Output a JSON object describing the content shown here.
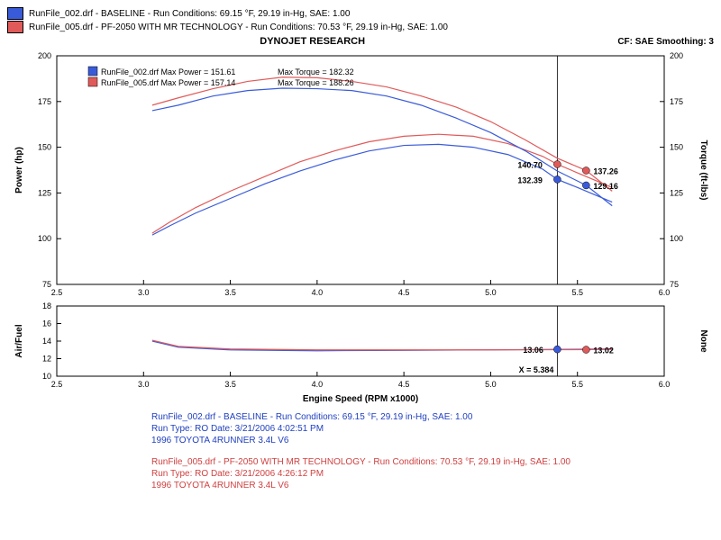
{
  "colors": {
    "run1": "#3a5bd9",
    "run2": "#e05a5a",
    "frame": "#000000",
    "bg": "#ffffff",
    "text1": "#2040c0",
    "text2": "#d04040"
  },
  "top_legend": {
    "r1": "RunFile_002.drf - BASELINE  -  Run Conditions: 69.15 °F, 29.19 in-Hg, SAE: 1.00",
    "r2": "RunFile_005.drf - PF-2050 WITH MR TECHNOLOGY  -  Run Conditions: 70.53 °F, 29.19 in-Hg, SAE: 1.00"
  },
  "title": "DYNOJET RESEARCH",
  "header_right": "CF: SAE  Smoothing: 3",
  "inner_legend": {
    "r1_text": "RunFile_002.drf Max Power = 151.61",
    "r1_tq": "Max Torque = 182.32",
    "r2_text": "RunFile_005.drf Max Power = 157.14",
    "r2_tq": "Max Torque = 188.26"
  },
  "main": {
    "ylabel_left": "Power (hp)",
    "ylabel_right": "Torque (ft-lbs)",
    "xlim": [
      2.5,
      6.0
    ],
    "ylim": [
      75,
      200
    ],
    "xticks": [
      2.5,
      3.0,
      3.5,
      4.0,
      4.5,
      5.0,
      5.5,
      6.0
    ],
    "yticks": [
      75,
      100,
      125,
      150,
      175,
      200
    ],
    "cursor_x": 5.384,
    "points": {
      "r1_hp": {
        "x": 5.384,
        "y": 132.39,
        "label": "132.39",
        "label_dx": -44,
        "label_dy": 4
      },
      "r2_hp": {
        "x": 5.384,
        "y": 140.7,
        "label": "140.70",
        "label_dx": -44,
        "label_dy": 4
      },
      "r1_tq": {
        "x": 5.55,
        "y": 129.16,
        "label": "129.16",
        "label_dx": 8,
        "label_dy": 4
      },
      "r2_tq": {
        "x": 5.55,
        "y": 137.26,
        "label": "137.26",
        "label_dx": 8,
        "label_dy": 4
      }
    },
    "series": {
      "hp_r1": [
        [
          3.05,
          102
        ],
        [
          3.15,
          107
        ],
        [
          3.3,
          114
        ],
        [
          3.5,
          122
        ],
        [
          3.7,
          130
        ],
        [
          3.9,
          137
        ],
        [
          4.1,
          143
        ],
        [
          4.3,
          148
        ],
        [
          4.5,
          151
        ],
        [
          4.7,
          151.6
        ],
        [
          4.9,
          150
        ],
        [
          5.1,
          146
        ],
        [
          5.3,
          138
        ],
        [
          5.384,
          132.4
        ],
        [
          5.5,
          128
        ],
        [
          5.7,
          120
        ]
      ],
      "hp_r2": [
        [
          3.05,
          103
        ],
        [
          3.15,
          109
        ],
        [
          3.3,
          117
        ],
        [
          3.5,
          126
        ],
        [
          3.7,
          134
        ],
        [
          3.9,
          142
        ],
        [
          4.1,
          148
        ],
        [
          4.3,
          153
        ],
        [
          4.5,
          156
        ],
        [
          4.7,
          157.1
        ],
        [
          4.9,
          156
        ],
        [
          5.1,
          152
        ],
        [
          5.3,
          145
        ],
        [
          5.384,
          140.7
        ],
        [
          5.5,
          136
        ],
        [
          5.7,
          128
        ]
      ],
      "tq_r1": [
        [
          3.05,
          170
        ],
        [
          3.2,
          173
        ],
        [
          3.4,
          178
        ],
        [
          3.6,
          181
        ],
        [
          3.8,
          182.3
        ],
        [
          4.0,
          182
        ],
        [
          4.2,
          181
        ],
        [
          4.4,
          178
        ],
        [
          4.6,
          173
        ],
        [
          4.8,
          166
        ],
        [
          5.0,
          158
        ],
        [
          5.2,
          148
        ],
        [
          5.384,
          137
        ],
        [
          5.55,
          129.2
        ],
        [
          5.7,
          118
        ]
      ],
      "tq_r2": [
        [
          3.05,
          173
        ],
        [
          3.2,
          177
        ],
        [
          3.4,
          182
        ],
        [
          3.6,
          186
        ],
        [
          3.8,
          188.3
        ],
        [
          4.0,
          188
        ],
        [
          4.2,
          186
        ],
        [
          4.4,
          183
        ],
        [
          4.6,
          178
        ],
        [
          4.8,
          172
        ],
        [
          5.0,
          164
        ],
        [
          5.2,
          154
        ],
        [
          5.384,
          144
        ],
        [
          5.55,
          137.3
        ],
        [
          5.7,
          126
        ]
      ]
    }
  },
  "af": {
    "ylabel_left": "Air/Fuel",
    "ylabel_right": "None",
    "ylim": [
      10,
      18
    ],
    "yticks": [
      10,
      12,
      14,
      16,
      18
    ],
    "xlabel": "Engine Speed (RPM x1000)",
    "cursor_x": 5.384,
    "cursor_label": "X = 5.384",
    "points": {
      "r1": {
        "x": 5.384,
        "y": 13.06,
        "label": "13.06",
        "label_dx": -38,
        "label_dy": 4
      },
      "r2": {
        "x": 5.55,
        "y": 13.02,
        "label": "13.02",
        "label_dx": 8,
        "label_dy": 4
      }
    },
    "series": {
      "r1": [
        [
          3.05,
          14.0
        ],
        [
          3.2,
          13.3
        ],
        [
          3.5,
          13.0
        ],
        [
          4.0,
          12.9
        ],
        [
          4.5,
          12.95
        ],
        [
          5.0,
          13.0
        ],
        [
          5.384,
          13.06
        ],
        [
          5.7,
          13.1
        ]
      ],
      "r2": [
        [
          3.05,
          14.1
        ],
        [
          3.2,
          13.4
        ],
        [
          3.5,
          13.1
        ],
        [
          4.0,
          13.0
        ],
        [
          4.5,
          13.0
        ],
        [
          5.0,
          13.0
        ],
        [
          5.384,
          13.02
        ],
        [
          5.7,
          13.05
        ]
      ]
    }
  },
  "footer": {
    "b1_l1": "RunFile_002.drf - BASELINE  -  Run Conditions: 69.15 °F, 29.19 in-Hg, SAE: 1.00",
    "b1_l2": "Run Type: RO  Date: 3/21/2006 4:02:51 PM",
    "b1_l3": "1996 TOYOTA 4RUNNER 3.4L V6",
    "b2_l1": "RunFile_005.drf - PF-2050 WITH MR TECHNOLOGY  -  Run Conditions: 70.53 °F, 29.19 in-Hg, SAE: 1.00",
    "b2_l2": "Run Type: RO  Date: 3/21/2006 4:26:12 PM",
    "b2_l3": "1996 TOYOTA 4RUNNER 3.4L V6"
  }
}
